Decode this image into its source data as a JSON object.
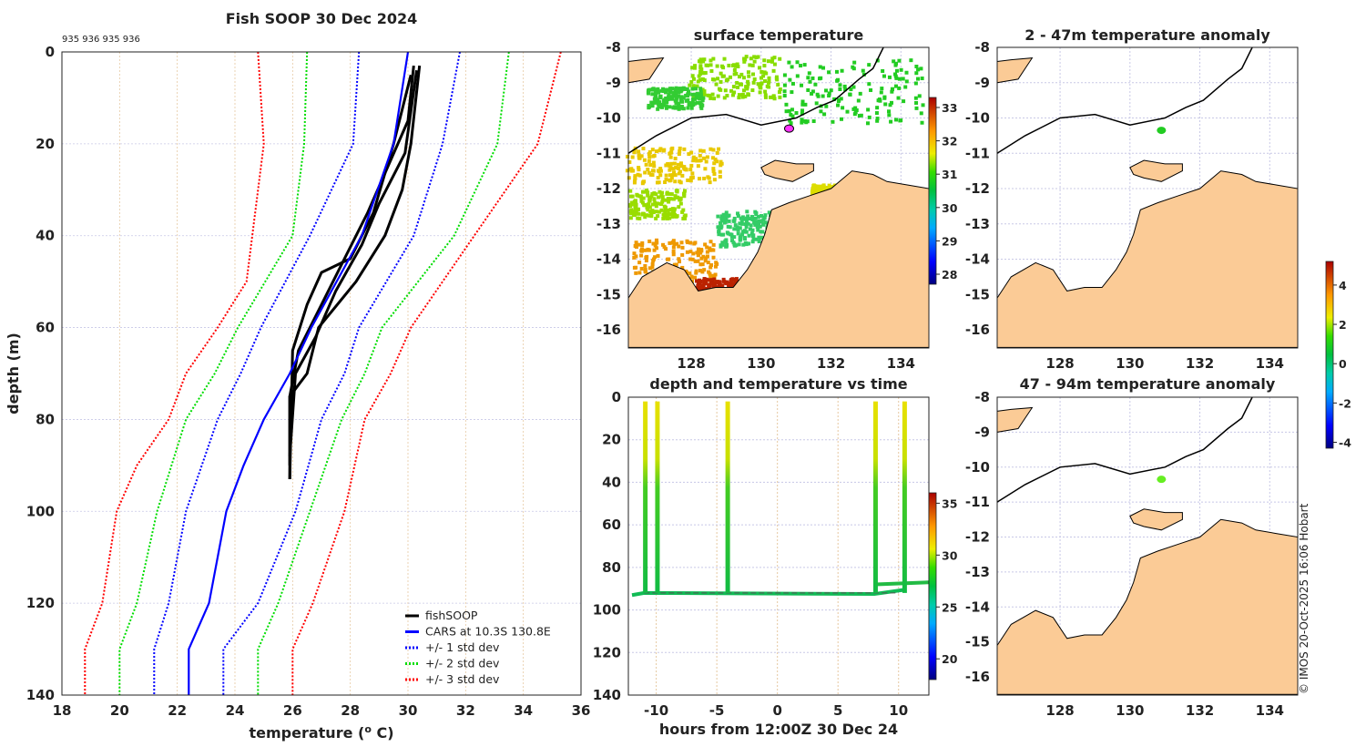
{
  "chart_data": [
    {
      "type": "line",
      "title": "Fish SOOP 30 Dec 2024",
      "subtitle": "935 936 935 936",
      "xlabel": "temperature (",
      "xlabel_sup": "o",
      "xlabel_end": " C)",
      "ylabel": "depth (m)",
      "xlim": [
        18,
        36
      ],
      "ylim": [
        0,
        140
      ],
      "y_reversed": true,
      "grid": true,
      "xticks": [
        18,
        20,
        22,
        24,
        26,
        28,
        30,
        32,
        34,
        36
      ],
      "yticks": [
        0,
        20,
        40,
        60,
        80,
        100,
        120,
        140
      ],
      "legend_position": "bottom-right",
      "series": [
        {
          "name": "fishSOOP",
          "color": "#000000",
          "style": "solid",
          "points": [
            [
              30.2,
              3
            ],
            [
              30.0,
              15
            ],
            [
              29.3,
              25
            ],
            [
              28.6,
              35
            ],
            [
              27.8,
              45
            ],
            [
              27.0,
              55
            ],
            [
              26.2,
              65
            ],
            [
              25.9,
              75
            ],
            [
              25.9,
              93
            ]
          ]
        },
        {
          "name": "fishSOOP",
          "color": "#000000",
          "style": "solid",
          "legend": false,
          "points": [
            [
              30.4,
              3
            ],
            [
              30.1,
              20
            ],
            [
              29.8,
              30
            ],
            [
              29.2,
              40
            ],
            [
              28.2,
              50
            ],
            [
              26.9,
              60
            ],
            [
              26.5,
              70
            ],
            [
              25.9,
              75
            ],
            [
              25.9,
              90
            ]
          ]
        },
        {
          "name": "fishSOOP",
          "color": "#000000",
          "style": "solid",
          "legend": false,
          "points": [
            [
              30.1,
              5
            ],
            [
              29.5,
              20
            ],
            [
              28.8,
              35
            ],
            [
              28.0,
              45
            ],
            [
              27.0,
              48
            ],
            [
              26.5,
              55
            ],
            [
              26.0,
              65
            ],
            [
              25.9,
              93
            ]
          ]
        },
        {
          "name": "fishSOOP",
          "color": "#000000",
          "style": "solid",
          "legend": false,
          "points": [
            [
              30.3,
              4
            ],
            [
              29.9,
              22
            ],
            [
              29.0,
              33
            ],
            [
              28.4,
              42
            ],
            [
              27.5,
              52
            ],
            [
              26.8,
              62
            ],
            [
              26.1,
              70
            ],
            [
              25.9,
              88
            ]
          ]
        },
        {
          "name": "CARS at 10.3S 130.8E",
          "color": "#0000ff",
          "style": "solid",
          "points": [
            [
              30.0,
              0
            ],
            [
              29.5,
              20
            ],
            [
              28.4,
              40
            ],
            [
              26.65,
              60
            ],
            [
              25.9,
              70
            ],
            [
              25.0,
              80
            ],
            [
              24.3,
              90
            ],
            [
              23.7,
              100
            ],
            [
              23.4,
              110
            ],
            [
              23.1,
              120
            ],
            [
              22.4,
              130
            ],
            [
              22.4,
              140
            ]
          ]
        },
        {
          "name": "+/- 1 std dev",
          "color": "#0000ff",
          "style": "dotted",
          "points": [
            [
              28.3,
              0
            ],
            [
              28.1,
              20
            ],
            [
              26.6,
              40
            ],
            [
              24.9,
              60
            ],
            [
              24.2,
              70
            ],
            [
              23.4,
              80
            ],
            [
              22.3,
              100
            ],
            [
              21.7,
              120
            ],
            [
              21.2,
              130
            ],
            [
              21.2,
              140
            ]
          ]
        },
        {
          "name": "+/- 1 std dev",
          "color": "#0000ff",
          "style": "dotted",
          "legend": false,
          "points": [
            [
              31.8,
              0
            ],
            [
              31.2,
              20
            ],
            [
              30.2,
              40
            ],
            [
              28.3,
              60
            ],
            [
              27.8,
              70
            ],
            [
              27.0,
              80
            ],
            [
              26.1,
              100
            ],
            [
              24.8,
              120
            ],
            [
              23.6,
              130
            ],
            [
              23.6,
              140
            ]
          ]
        },
        {
          "name": "+/- 2 std dev",
          "color": "#00dd00",
          "style": "dotted",
          "points": [
            [
              26.5,
              0
            ],
            [
              26.4,
              20
            ],
            [
              26.0,
              40
            ],
            [
              24.1,
              60
            ],
            [
              23.3,
              70
            ],
            [
              22.3,
              80
            ],
            [
              21.3,
              100
            ],
            [
              20.6,
              120
            ],
            [
              20.0,
              130
            ],
            [
              20.0,
              140
            ]
          ]
        },
        {
          "name": "+/- 2 std dev",
          "color": "#00dd00",
          "style": "dotted",
          "legend": false,
          "points": [
            [
              33.5,
              0
            ],
            [
              33.1,
              20
            ],
            [
              31.6,
              40
            ],
            [
              29.1,
              60
            ],
            [
              28.5,
              70
            ],
            [
              27.7,
              80
            ],
            [
              26.6,
              100
            ],
            [
              25.5,
              120
            ],
            [
              24.8,
              130
            ],
            [
              24.8,
              140
            ]
          ]
        },
        {
          "name": "+/- 3 std dev",
          "color": "#ff0000",
          "style": "dotted",
          "points": [
            [
              24.8,
              0
            ],
            [
              25.0,
              20
            ],
            [
              24.4,
              50
            ],
            [
              23.4,
              60
            ],
            [
              22.3,
              70
            ],
            [
              21.7,
              80
            ],
            [
              20.6,
              90
            ],
            [
              19.9,
              100
            ],
            [
              19.4,
              120
            ],
            [
              18.8,
              130
            ],
            [
              18.8,
              140
            ]
          ]
        },
        {
          "name": "+/- 3 std dev",
          "color": "#ff0000",
          "style": "dotted",
          "legend": false,
          "points": [
            [
              35.3,
              0
            ],
            [
              34.5,
              20
            ],
            [
              32.3,
              40
            ],
            [
              30.1,
              60
            ],
            [
              29.4,
              70
            ],
            [
              28.5,
              80
            ],
            [
              27.8,
              100
            ],
            [
              26.7,
              120
            ],
            [
              26.0,
              130
            ],
            [
              26.0,
              140
            ]
          ]
        }
      ]
    },
    {
      "type": "heatmap",
      "title": "surface temperature",
      "xlim": [
        126.2,
        134.8
      ],
      "ylim": [
        -16.5,
        -8
      ],
      "xticks": [
        128,
        130,
        132,
        134
      ],
      "yticks": [
        -8,
        -9,
        -10,
        -11,
        -12,
        -13,
        -14,
        -15,
        -16
      ],
      "colorbar": {
        "range": [
          27.7,
          33.3
        ],
        "ticks": [
          28,
          29,
          30,
          31,
          32,
          33
        ]
      },
      "marker": {
        "lon": 130.8,
        "lat": -10.3,
        "color": "#ff33ff"
      }
    },
    {
      "type": "heatmap",
      "title": "2 - 47m temperature anomaly",
      "xlim": [
        126.2,
        134.8
      ],
      "ylim": [
        -16.5,
        -8
      ],
      "xticks": [
        128,
        130,
        132,
        134
      ],
      "yticks": [
        -8,
        -9,
        -10,
        -11,
        -12,
        -13,
        -14,
        -15,
        -16
      ],
      "marker": {
        "lon": 130.9,
        "lat": -10.35,
        "color": "#22cc22"
      }
    },
    {
      "type": "scatter",
      "title": "depth and temperature vs time",
      "xlabel": "hours from 12:00Z 30 Dec 24",
      "xlim": [
        -12.3,
        12.5
      ],
      "ylim": [
        0,
        140
      ],
      "y_reversed": true,
      "xticks": [
        -10,
        -5,
        0,
        5,
        10
      ],
      "yticks": [
        0,
        20,
        40,
        60,
        80,
        100,
        120,
        140
      ],
      "profile_hours": [
        -10.9,
        -9.9,
        -4.1,
        8.1,
        10.5
      ],
      "bottom_depth": 92,
      "colorbar": {
        "range": [
          18,
          36
        ],
        "ticks": [
          20,
          25,
          30,
          35
        ]
      }
    },
    {
      "type": "heatmap",
      "title": "47 - 94m temperature anomaly",
      "xlim": [
        126.2,
        134.8
      ],
      "ylim": [
        -16.5,
        -8
      ],
      "xticks": [
        128,
        130,
        132,
        134
      ],
      "yticks": [
        -8,
        -9,
        -10,
        -11,
        -12,
        -13,
        -14,
        -15,
        -16
      ],
      "marker": {
        "lon": 130.9,
        "lat": -10.35,
        "color": "#66ee22"
      },
      "colorbar": {
        "range": [
          -4.3,
          5.2
        ],
        "ticks": [
          4,
          2,
          0,
          -2,
          -4
        ]
      }
    }
  ],
  "credit": "© IMOS 20-Oct-2025 16:06 Hobart",
  "colors": {
    "land": "#fbcb96",
    "grid": "#c8c8e6"
  }
}
